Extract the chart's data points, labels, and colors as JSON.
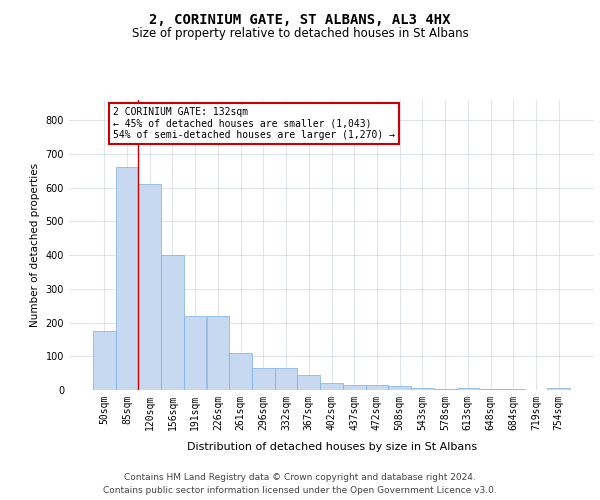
{
  "title": "2, CORINIUM GATE, ST ALBANS, AL3 4HX",
  "subtitle": "Size of property relative to detached houses in St Albans",
  "xlabel": "Distribution of detached houses by size in St Albans",
  "ylabel": "Number of detached properties",
  "bar_categories": [
    "50sqm",
    "85sqm",
    "120sqm",
    "156sqm",
    "191sqm",
    "226sqm",
    "261sqm",
    "296sqm",
    "332sqm",
    "367sqm",
    "402sqm",
    "437sqm",
    "472sqm",
    "508sqm",
    "543sqm",
    "578sqm",
    "613sqm",
    "648sqm",
    "684sqm",
    "719sqm",
    "754sqm"
  ],
  "bar_values": [
    175,
    660,
    610,
    400,
    218,
    218,
    110,
    65,
    65,
    44,
    20,
    15,
    15,
    12,
    6,
    4,
    5,
    2,
    2,
    1,
    5
  ],
  "bar_color": "#c6d9f0",
  "bar_edge_color": "#7aafe0",
  "grid_color": "#d0d8e8",
  "annotation_line1": "2 CORINIUM GATE: 132sqm",
  "annotation_line2": "← 45% of detached houses are smaller (1,043)",
  "annotation_line3": "54% of semi-detached houses are larger (1,270) →",
  "annotation_box_facecolor": "#ffffff",
  "annotation_box_edgecolor": "#cc0000",
  "vline_color": "#cc0000",
  "vline_x": 1.5,
  "ylim": [
    0,
    860
  ],
  "yticks": [
    0,
    100,
    200,
    300,
    400,
    500,
    600,
    700,
    800
  ],
  "background_color": "#ffffff",
  "title_fontsize": 10,
  "subtitle_fontsize": 8.5,
  "xlabel_fontsize": 8,
  "ylabel_fontsize": 7.5,
  "tick_fontsize": 7,
  "annotation_fontsize": 7,
  "footer_fontsize": 6.5,
  "footer_line1": "Contains HM Land Registry data © Crown copyright and database right 2024.",
  "footer_line2": "Contains public sector information licensed under the Open Government Licence v3.0."
}
